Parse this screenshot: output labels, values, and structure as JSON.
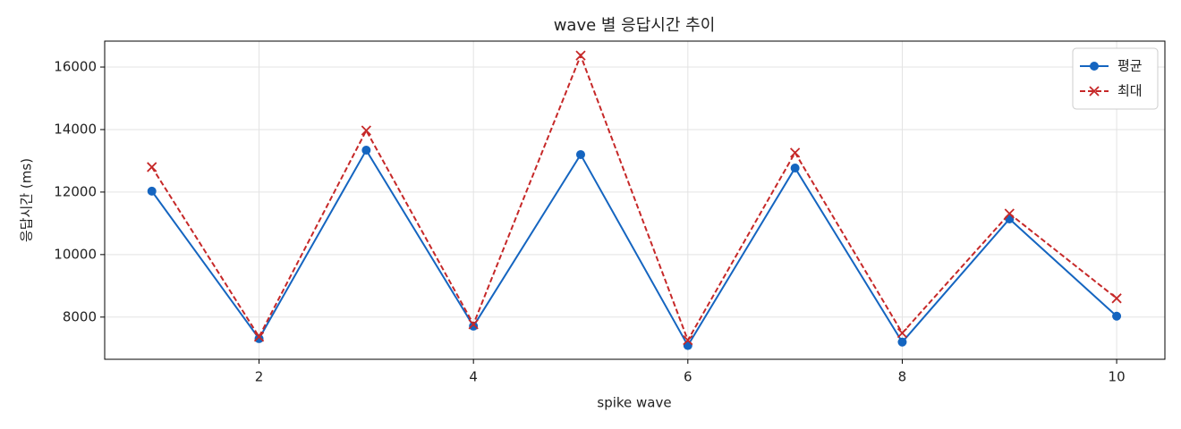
{
  "chart_data": {
    "type": "line",
    "title": "wave 별 응답시간 추이",
    "x_label": "spike wave",
    "y_label": "응답시간 (ms)",
    "x": [
      1,
      2,
      3,
      4,
      5,
      6,
      7,
      8,
      9,
      10
    ],
    "series": [
      {
        "name": "평균",
        "color": "#1565c0",
        "linestyle": "solid",
        "marker": "circle",
        "values": [
          12030,
          7310,
          13340,
          7710,
          13200,
          7090,
          12770,
          7200,
          11140,
          8030
        ]
      },
      {
        "name": "최대",
        "color": "#c62828",
        "linestyle": "dashed",
        "marker": "cross",
        "values": [
          12800,
          7370,
          13970,
          7770,
          16370,
          7260,
          13260,
          7490,
          11310,
          8600
        ]
      }
    ],
    "xlim": [
      0.56,
      10.45
    ],
    "ylim": [
      6650,
      16830
    ],
    "xticks": [
      2,
      4,
      6,
      8,
      10
    ],
    "yticks": [
      8000,
      10000,
      12000,
      14000,
      16000
    ],
    "grid": true,
    "legend": "upper right"
  }
}
